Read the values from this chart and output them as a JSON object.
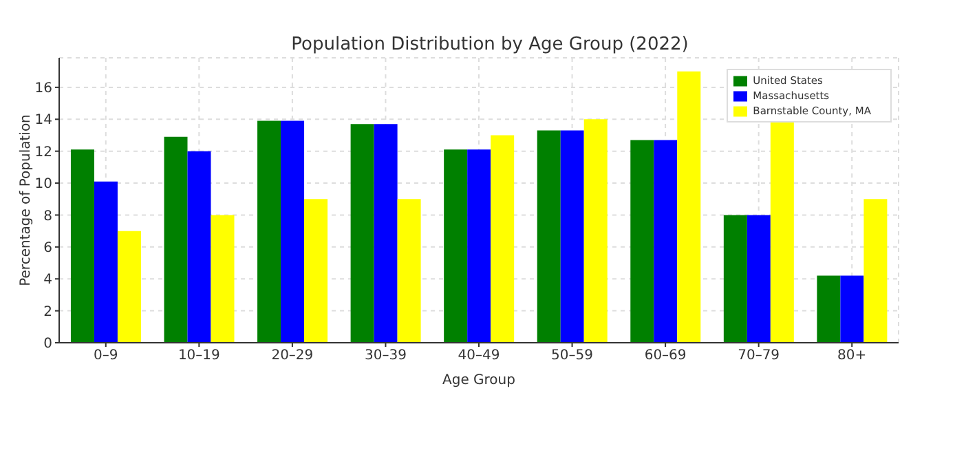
{
  "chart_data": {
    "type": "bar",
    "title": "Population Distribution by Age Group (2022)",
    "xlabel": "Age Group",
    "ylabel": "Percentage of Population",
    "categories": [
      "0–9",
      "10–19",
      "20–29",
      "30–39",
      "40–49",
      "50–59",
      "60–69",
      "70–79",
      "80+"
    ],
    "series": [
      {
        "name": "United States",
        "color": "#008000",
        "values": [
          12.1,
          12.9,
          13.9,
          13.7,
          12.1,
          13.3,
          12.7,
          8,
          4.2
        ]
      },
      {
        "name": "Massachusetts",
        "color": "#0000ff",
        "values": [
          10.1,
          12,
          13.9,
          13.7,
          12.1,
          13.3,
          12.7,
          8,
          4.2
        ]
      },
      {
        "name": "Barnstable County, MA",
        "color": "#ffff00",
        "values": [
          7,
          8,
          9,
          9,
          13,
          14,
          17,
          14,
          9
        ]
      }
    ],
    "ylim": [
      0,
      17.85
    ],
    "yticks": [
      0,
      2,
      4,
      6,
      8,
      10,
      12,
      14,
      16
    ],
    "grid": true,
    "legend": "top right"
  }
}
